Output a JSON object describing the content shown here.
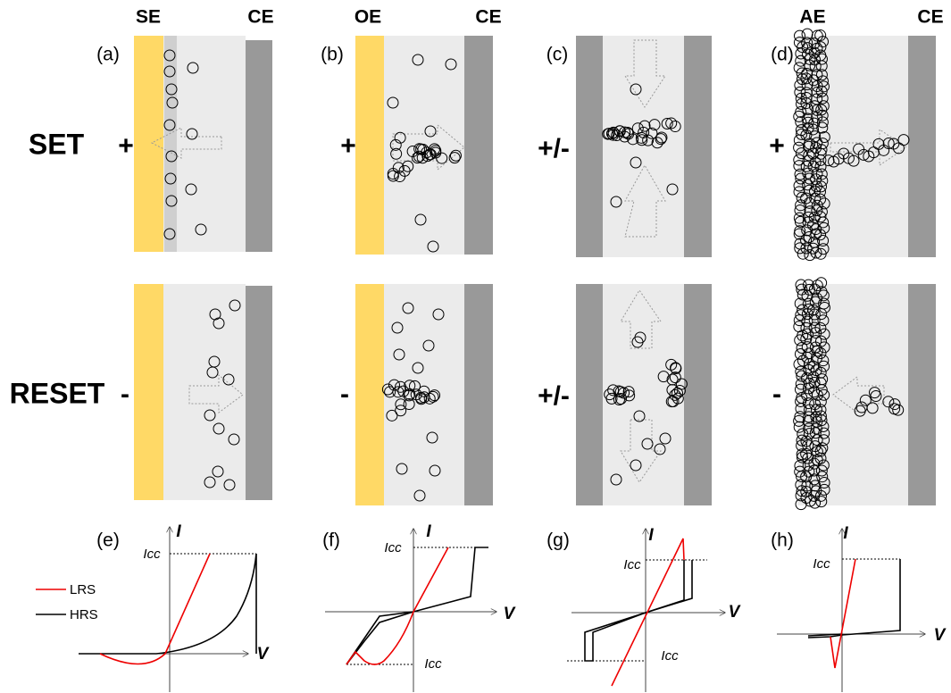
{
  "headers": [
    "SE",
    "CE",
    "OE",
    "CE",
    "AE",
    "CE"
  ],
  "rows": {
    "set": "SET",
    "reset": "RESET"
  },
  "panels": [
    {
      "label": "(a)",
      "set_sign": "+",
      "reset_sign": "-"
    },
    {
      "label": "(b)",
      "set_sign": "+",
      "reset_sign": "-"
    },
    {
      "label": "(c)",
      "set_sign": "+/-",
      "reset_sign": "+/-"
    },
    {
      "label": "(d)",
      "set_sign": "+",
      "reset_sign": "-"
    }
  ],
  "plots": [
    {
      "label": "(e)",
      "y_axis": "I",
      "x_axis": "V",
      "icc": [
        "Icc"
      ]
    },
    {
      "label": "(f)",
      "y_axis": "I",
      "x_axis": "V",
      "icc": [
        "Icc",
        "Icc"
      ]
    },
    {
      "label": "(g)",
      "y_axis": "I",
      "x_axis": "V",
      "icc": [
        "Icc",
        "Icc"
      ]
    },
    {
      "label": "(h)",
      "y_axis": "I",
      "x_axis": "V",
      "icc": [
        "Icc"
      ]
    }
  ],
  "legend": [
    "LRS",
    "HRS"
  ]
}
